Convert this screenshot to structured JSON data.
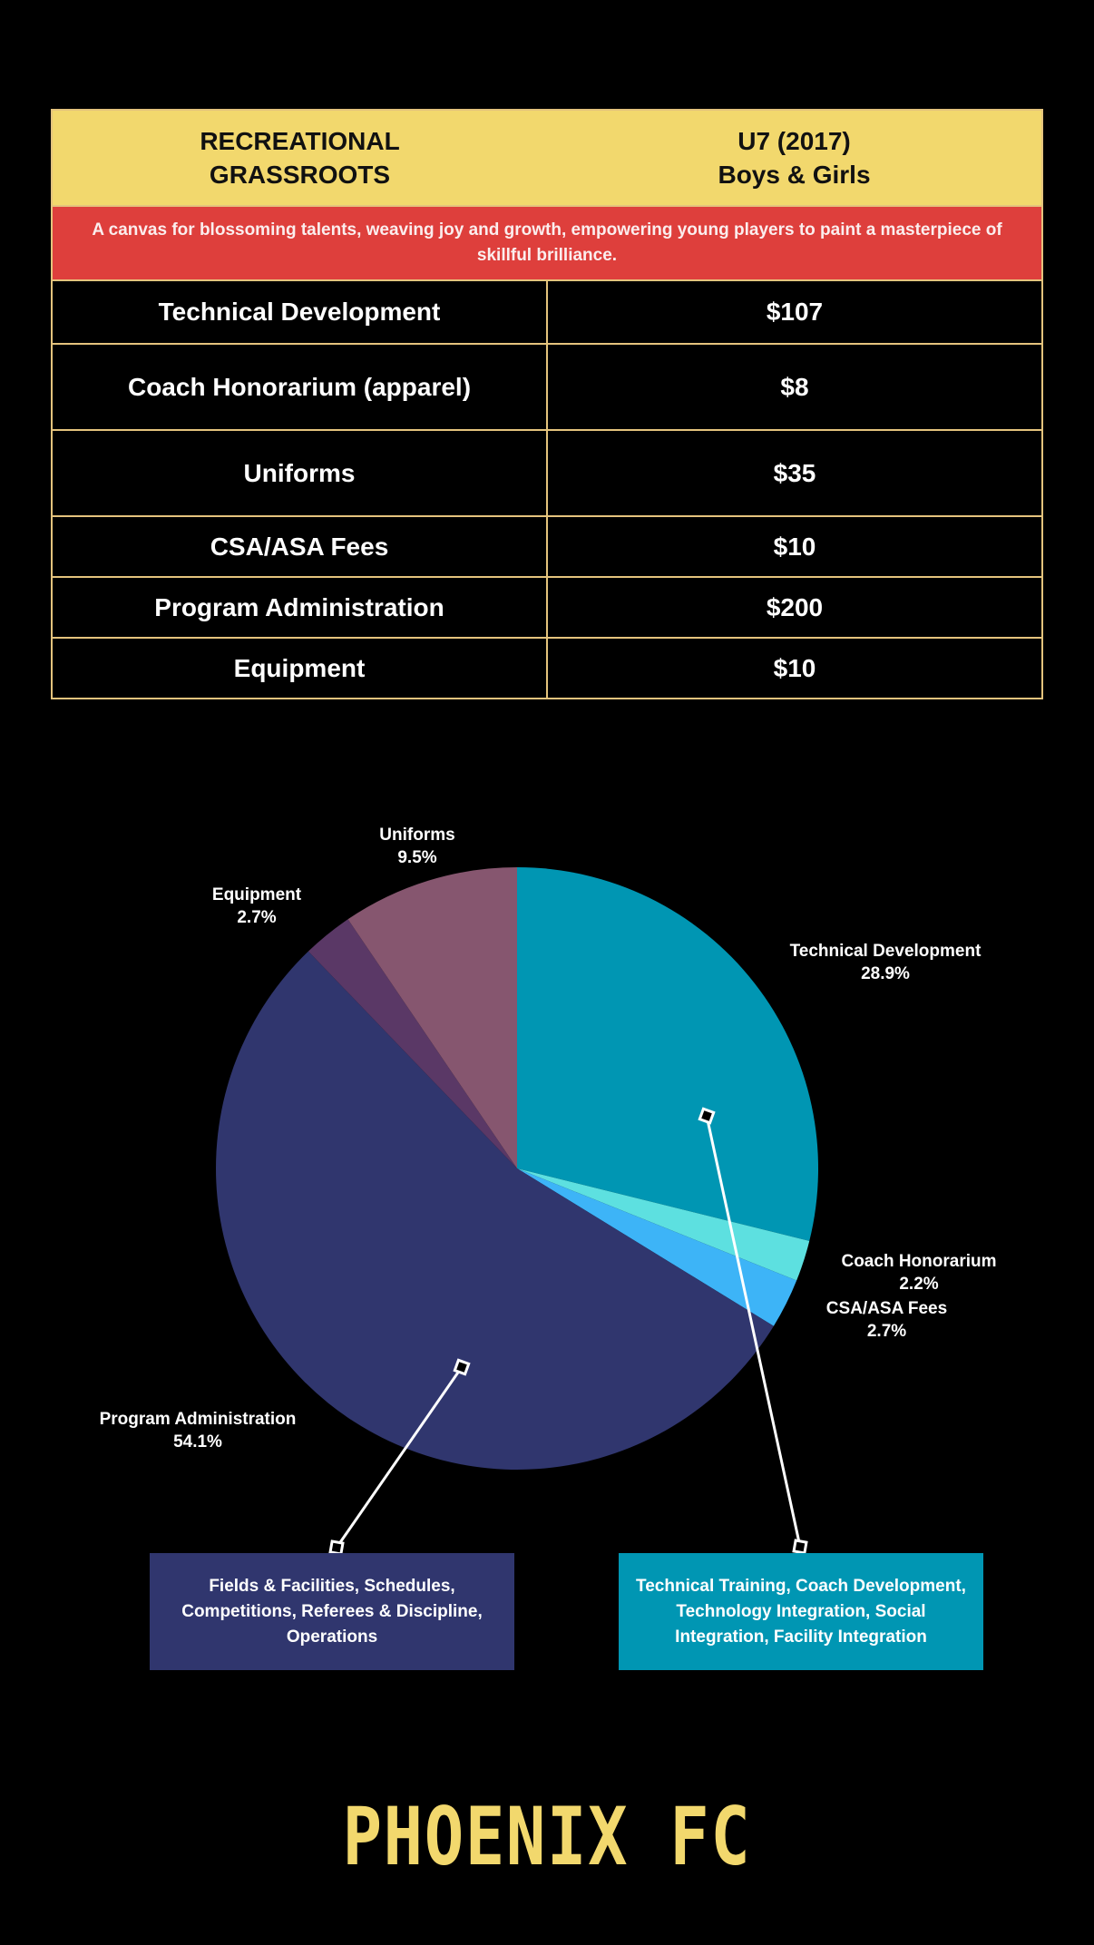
{
  "table": {
    "program_line1": "RECREATIONAL",
    "program_line2": "GRASSROOTS",
    "age_line1": "U7 (2017)",
    "age_line2": "Boys & Girls",
    "tagline": "A canvas for blossoming talents, weaving joy and growth, empowering young players to paint a masterpiece of skillful brilliance.",
    "rows": [
      {
        "item": "Technical Development",
        "price": "$107"
      },
      {
        "item": "Coach Honorarium (apparel)",
        "price": "$8"
      },
      {
        "item": "Uniforms",
        "price": "$35"
      },
      {
        "item": "CSA/ASA Fees",
        "price": "$10"
      },
      {
        "item": "Program Administration",
        "price": "$200"
      },
      {
        "item": "Equipment",
        "price": "$10"
      }
    ]
  },
  "chart_data": {
    "type": "pie",
    "title": "",
    "slices": [
      {
        "name": "Technical Development",
        "pct": 28.9,
        "pct_label": "28.9%",
        "color": "#0096b3"
      },
      {
        "name": "Coach Honorarium",
        "pct": 2.2,
        "pct_label": "2.2%",
        "color": "#5de0e0"
      },
      {
        "name": "CSA/ASA Fees",
        "pct": 2.7,
        "pct_label": "2.7%",
        "color": "#3db4f7"
      },
      {
        "name": "Program Administration",
        "pct": 54.1,
        "pct_label": "54.1%",
        "color": "#30366e"
      },
      {
        "name": "Equipment",
        "pct": 2.7,
        "pct_label": "2.7%",
        "color": "#5a3866"
      },
      {
        "name": "Uniforms",
        "pct": 9.5,
        "pct_label": "9.5%",
        "color": "#86566f"
      }
    ]
  },
  "callouts": {
    "program_administration": {
      "text": "Fields & Facilities, Schedules, Competitions, Referees & Discipline, Operations",
      "color": "#30366e"
    },
    "technical_development": {
      "text": "Technical Training, Coach Development, Technology Integration, Social Integration, Facility Integration",
      "color": "#0096b3"
    }
  },
  "logo": {
    "text": "PHOENIX FC",
    "color": "#f2d86d"
  },
  "colors": {
    "background": "#000000",
    "header": "#f2d86d",
    "tagline": "#de3f3c",
    "table_border": "#e4c37d"
  }
}
